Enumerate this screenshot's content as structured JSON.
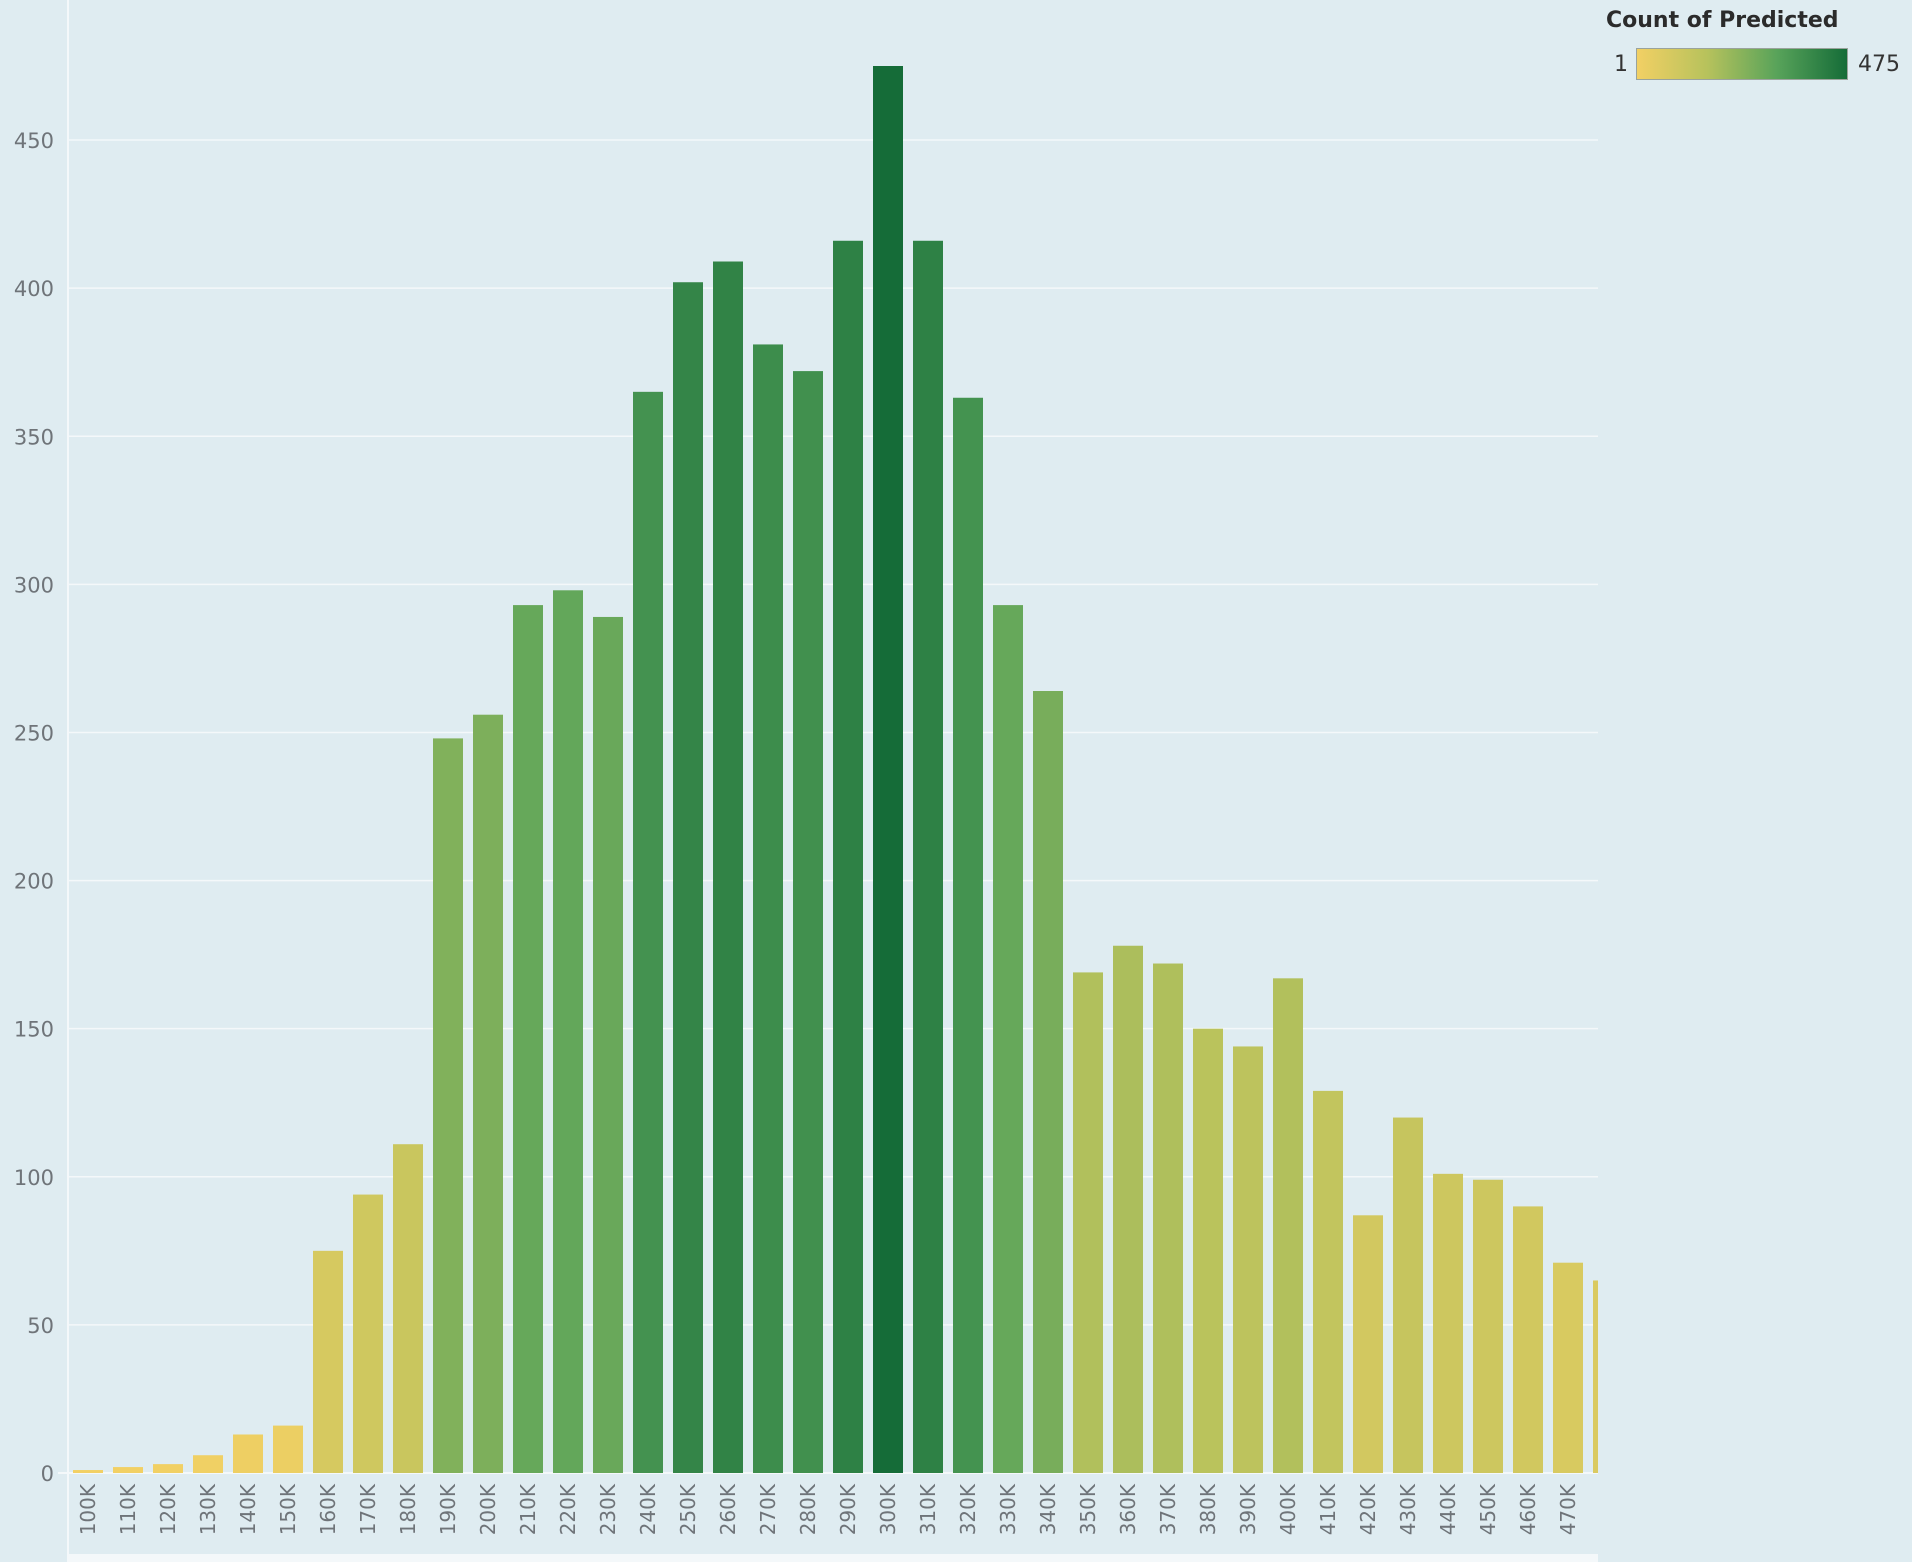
{
  "chart_data": {
    "type": "bar",
    "title": "",
    "xlabel": "",
    "ylabel": "",
    "categories": [
      "100K",
      "110K",
      "120K",
      "130K",
      "140K",
      "150K",
      "160K",
      "170K",
      "180K",
      "190K",
      "200K",
      "210K",
      "220K",
      "230K",
      "240K",
      "250K",
      "260K",
      "270K",
      "280K",
      "290K",
      "300K",
      "310K",
      "320K",
      "330K",
      "340K",
      "350K",
      "360K",
      "370K",
      "380K",
      "390K",
      "400K",
      "410K",
      "420K",
      "430K",
      "440K",
      "450K",
      "460K",
      "470K"
    ],
    "values": [
      1,
      2,
      3,
      6,
      13,
      16,
      75,
      94,
      111,
      248,
      256,
      293,
      298,
      289,
      365,
      402,
      409,
      381,
      372,
      416,
      475,
      416,
      363,
      293,
      264,
      169,
      178,
      172,
      150,
      144,
      167,
      129,
      87,
      120,
      101,
      99,
      90,
      71
    ],
    "partial_bar": {
      "value": 65
    },
    "ylim": [
      0,
      475
    ],
    "yticks": [
      0,
      50,
      100,
      150,
      200,
      250,
      300,
      350,
      400,
      450
    ],
    "grid": true,
    "legend": {
      "title": "Count of Predicted",
      "min_label": "1",
      "max_label": "475",
      "min": 1,
      "max": 475,
      "placement": "top-right",
      "colors": [
        "#f2d064",
        "#b7c25c",
        "#58a35a",
        "#156c38"
      ]
    }
  }
}
